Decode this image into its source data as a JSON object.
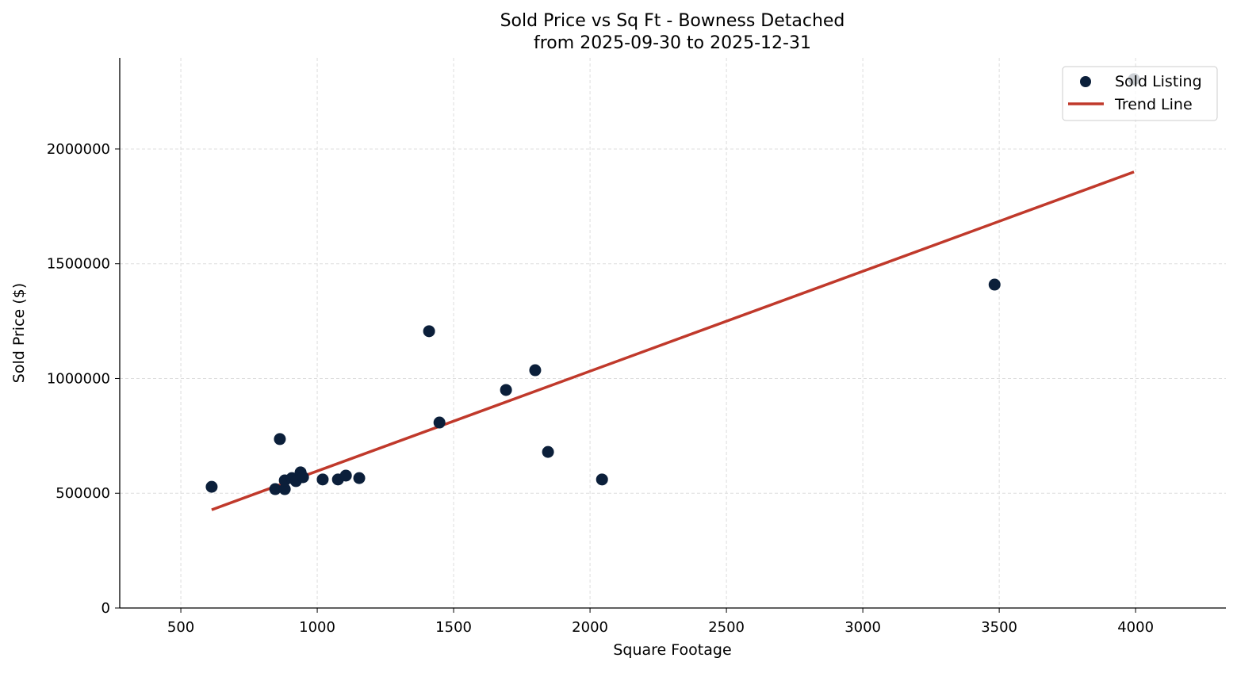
{
  "chart_data": {
    "type": "scatter",
    "title": "Sold Price vs Sq Ft - Bowness Detached",
    "subtitle": "from 2025-09-30 to 2025-12-31",
    "xlabel": "Square Footage",
    "ylabel": "Sold Price ($)",
    "xlim": [
      276,
      4331
    ],
    "ylim": [
      0,
      2397000
    ],
    "xticks": [
      500,
      1000,
      1500,
      2000,
      2500,
      3000,
      3500,
      4000
    ],
    "yticks": [
      0,
      500000,
      1000000,
      1500000,
      2000000
    ],
    "grid": true,
    "legend_position": "top-right",
    "colors": {
      "points": "#0b1f3a",
      "trend": "#c0392b"
    },
    "series": [
      {
        "name": "Sold Listing",
        "type": "scatter",
        "points": [
          [
            613,
            528000
          ],
          [
            863,
            736000
          ],
          [
            846,
            518000
          ],
          [
            881,
            518000
          ],
          [
            881,
            556000
          ],
          [
            907,
            566000
          ],
          [
            922,
            553000
          ],
          [
            939,
            591000
          ],
          [
            948,
            570000
          ],
          [
            1020,
            560000
          ],
          [
            1076,
            560000
          ],
          [
            1105,
            577000
          ],
          [
            1154,
            566000
          ],
          [
            1410,
            1206000
          ],
          [
            1448,
            808000
          ],
          [
            1692,
            950000
          ],
          [
            1799,
            1036000
          ],
          [
            1846,
            680000
          ],
          [
            2044,
            560000
          ],
          [
            3483,
            1409000
          ],
          [
            3994,
            2304000
          ]
        ]
      },
      {
        "name": "Trend Line",
        "type": "line",
        "points": [
          [
            613,
            428000
          ],
          [
            3994,
            1900000
          ]
        ]
      }
    ]
  }
}
